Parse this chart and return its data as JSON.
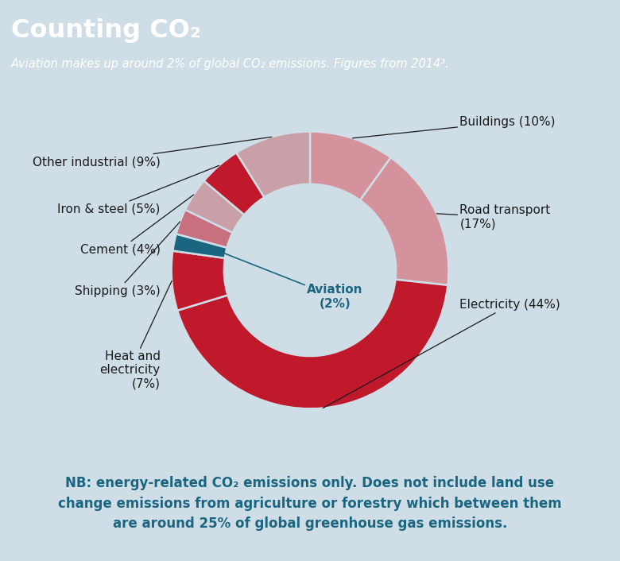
{
  "title": "Counting CO₂",
  "subtitle": "Aviation makes up around 2% of global CO₂ emissions. Figures from 2014³.",
  "header_bg": "#1a6680",
  "chart_bg": "#cfdde6",
  "footer_text_line1": "NB: energy-related CO₂ emissions only. Does not include land use",
  "footer_text_line2": "change emissions from agriculture or forestry which between them",
  "footer_text_line3": "are around 25% of global greenhouse gas emissions.",
  "ordered_segments": [
    {
      "label": "Buildings",
      "pct": 10,
      "color": "#d4939c"
    },
    {
      "label": "Road transport",
      "pct": 17,
      "color": "#d4939c"
    },
    {
      "label": "Electricity",
      "pct": 44,
      "color": "#c0192c"
    },
    {
      "label": "Heat and electricity",
      "pct": 7,
      "color": "#c0192c"
    },
    {
      "label": "Aviation",
      "pct": 2,
      "color": "#1a6680"
    },
    {
      "label": "Shipping",
      "pct": 3,
      "color": "#c87080"
    },
    {
      "label": "Cement",
      "pct": 4,
      "color": "#c9a0a8"
    },
    {
      "label": "Iron & steel",
      "pct": 5,
      "color": "#c0192c"
    },
    {
      "label": "Other industrial",
      "pct": 9,
      "color": "#c9a0a8"
    }
  ],
  "donut_width": 0.38,
  "aviation_line_color": "#1a6680",
  "label_fontsize": 11,
  "label_pct_fontsize": 10,
  "footer_fontsize": 12,
  "footer_color": "#1a6680"
}
